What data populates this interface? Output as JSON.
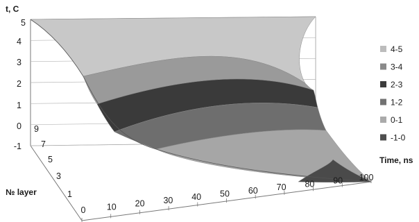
{
  "chart_data": {
    "type": "surface-3d",
    "title": "",
    "zlabel": "t, C",
    "xlabel": "Time, ns",
    "ylabel": "№ layer",
    "z_ticks": [
      "-1",
      "0",
      "1",
      "2",
      "3",
      "4",
      "5"
    ],
    "x_ticks": [
      "0",
      "10",
      "20",
      "30",
      "40",
      "50",
      "60",
      "70",
      "80",
      "90",
      "100"
    ],
    "y_ticks": [
      "1",
      "3",
      "5",
      "7",
      "9"
    ],
    "zlim": [
      -1,
      5
    ],
    "xlim": [
      0,
      100
    ],
    "ylim": [
      1,
      9
    ],
    "legend": {
      "position": "right",
      "entries": [
        {
          "label": "4-5",
          "color": "#bcbcbc"
        },
        {
          "label": "3-4",
          "color": "#8a8a8a"
        },
        {
          "label": "2-3",
          "color": "#3c3c3c"
        },
        {
          "label": "1-2",
          "color": "#727272"
        },
        {
          "label": "0-1",
          "color": "#aaaaaa"
        },
        {
          "label": "-1-0",
          "color": "#4e4e4e"
        }
      ]
    },
    "surface_bands": [
      {
        "range": "4-5",
        "color": "#c8c8c8"
      },
      {
        "range": "3-4",
        "color": "#9a9a9a"
      },
      {
        "range": "2-3",
        "color": "#3a3a3a"
      },
      {
        "range": "1-2",
        "color": "#6e6e6e"
      },
      {
        "range": "0-1",
        "color": "#a6a6a6"
      },
      {
        "range": "-1-0",
        "color": "#4a4a4a"
      }
    ]
  }
}
